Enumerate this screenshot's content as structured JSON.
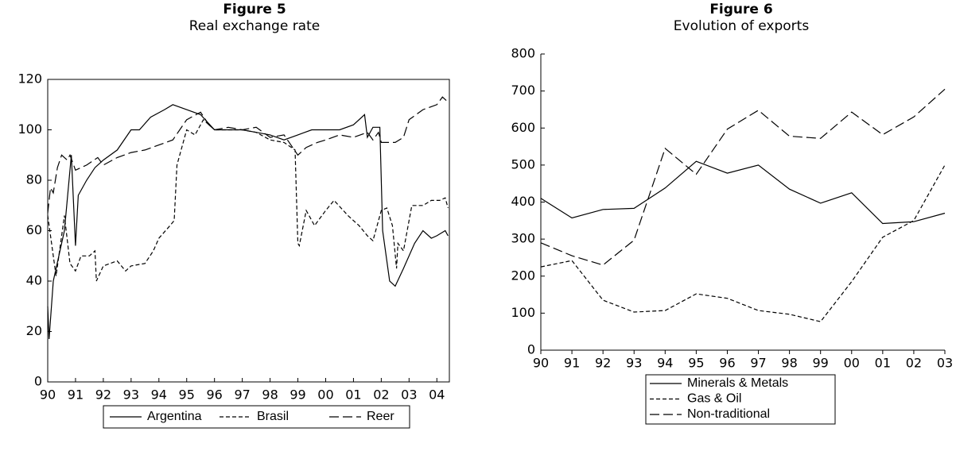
{
  "chart_data": [
    {
      "type": "line",
      "title": "Figure 5",
      "subtitle": "Real exchange rate",
      "xlim": [
        1990,
        2004.45
      ],
      "xticks": [
        {
          "value": 1990,
          "label": "90"
        },
        {
          "value": 1991,
          "label": "91"
        },
        {
          "value": 1992,
          "label": "92"
        },
        {
          "value": 1993,
          "label": "93"
        },
        {
          "value": 1994,
          "label": "94"
        },
        {
          "value": 1995,
          "label": "95"
        },
        {
          "value": 1996,
          "label": "96"
        },
        {
          "value": 1997,
          "label": "97"
        },
        {
          "value": 1998,
          "label": "98"
        },
        {
          "value": 1999,
          "label": "99"
        },
        {
          "value": 2000,
          "label": "00"
        },
        {
          "value": 2001,
          "label": "01"
        },
        {
          "value": 2002,
          "label": "02"
        },
        {
          "value": 2003,
          "label": "03"
        },
        {
          "value": 2004,
          "label": "04"
        }
      ],
      "ylim": [
        0,
        120
      ],
      "yticks": [
        0,
        20,
        40,
        60,
        80,
        100,
        120
      ],
      "frame": true,
      "legend": "bottom",
      "legend_layout": "row",
      "series": [
        {
          "name": "Argentina",
          "color": "#000000",
          "style": "solid",
          "x": [
            1990.0,
            1990.05,
            1990.2,
            1990.4,
            1990.6,
            1990.85,
            1991.0,
            1991.1,
            1991.4,
            1991.7,
            1992.0,
            1992.5,
            1993.0,
            1993.3,
            1993.7,
            1994.2,
            1994.5,
            1995.0,
            1995.5,
            1996.0,
            1997.0,
            1997.5,
            1998.0,
            1998.5,
            1999.0,
            1999.5,
            2000.5,
            2001.0,
            2001.4,
            2001.5,
            2001.7,
            2001.95,
            2002.05,
            2002.3,
            2002.5,
            2002.8,
            2003.2,
            2003.5,
            2003.8,
            2004.0,
            2004.3,
            2004.4
          ],
          "values": [
            30,
            17,
            40,
            50,
            60,
            90,
            54,
            74,
            80,
            85,
            88,
            92,
            100,
            100,
            105,
            108,
            110,
            108,
            106,
            100,
            100,
            99,
            98,
            96,
            98,
            100,
            100,
            102,
            106,
            97,
            101,
            101,
            60,
            40,
            38,
            45,
            55,
            60,
            57,
            58,
            60,
            58
          ]
        },
        {
          "name": "Brasil",
          "color": "#000000",
          "style": "dashed",
          "x": [
            1990.0,
            1990.2,
            1990.3,
            1990.5,
            1990.6,
            1990.8,
            1991.0,
            1991.2,
            1991.5,
            1991.7,
            1991.75,
            1992.0,
            1992.5,
            1992.8,
            1993.0,
            1993.5,
            1993.8,
            1994.0,
            1994.4,
            1994.55,
            1994.65,
            1995.0,
            1995.3,
            1995.6,
            1996.0,
            1996.5,
            1997.0,
            1997.5,
            1998.0,
            1998.5,
            1998.9,
            1999.0,
            1999.05,
            1999.3,
            1999.6,
            2000.0,
            2000.3,
            2000.8,
            2001.2,
            2001.5,
            2001.7,
            2002.0,
            2002.2,
            2002.4,
            2002.55,
            2002.6,
            2002.8,
            2003.1,
            2003.5,
            2003.8,
            2004.1,
            2004.3,
            2004.4
          ],
          "values": [
            66,
            50,
            42,
            58,
            66,
            47,
            44,
            50,
            50,
            52,
            40,
            46,
            48,
            44,
            46,
            47,
            52,
            57,
            62,
            64,
            86,
            100,
            98,
            104,
            100,
            100,
            100,
            99,
            96,
            95,
            92,
            55,
            54,
            68,
            62,
            68,
            72,
            66,
            62,
            58,
            56,
            68,
            69,
            62,
            45,
            55,
            52,
            70,
            70,
            72,
            72,
            73,
            69
          ]
        },
        {
          "name": "Reer",
          "color": "#000000",
          "style": "longdash",
          "x": [
            1990.0,
            1990.1,
            1990.2,
            1990.35,
            1990.5,
            1990.7,
            1990.8,
            1991.0,
            1991.4,
            1991.8,
            1992.0,
            1992.5,
            1993.0,
            1993.5,
            1994.0,
            1994.5,
            1995.0,
            1995.5,
            1995.8,
            1996.0,
            1996.5,
            1997.0,
            1997.5,
            1998.0,
            1998.5,
            1999.0,
            1999.3,
            1999.7,
            2000.0,
            2000.5,
            2001.0,
            2001.5,
            2001.7,
            2001.9,
            2002.0,
            2002.5,
            2002.8,
            2003.0,
            2003.5,
            2004.0,
            2004.2,
            2004.4
          ],
          "values": [
            67,
            77,
            75,
            85,
            90,
            88,
            90,
            84,
            86,
            89,
            86,
            89,
            91,
            92,
            94,
            96,
            104,
            107,
            102,
            100,
            101,
            100,
            101,
            97,
            98,
            90,
            93,
            95,
            96,
            98,
            97,
            99,
            96,
            99,
            95,
            95,
            97,
            104,
            108,
            110,
            113,
            111
          ]
        }
      ]
    },
    {
      "type": "line",
      "title": "Figure 6",
      "subtitle": "Evolution of exports",
      "categories": [
        "90",
        "91",
        "92",
        "93",
        "94",
        "95",
        "96",
        "97",
        "98",
        "99",
        "00",
        "01",
        "02",
        "03"
      ],
      "ylim": [
        0,
        800
      ],
      "yticks": [
        0,
        100,
        200,
        300,
        400,
        500,
        600,
        700,
        800
      ],
      "frame": false,
      "legend": "bottom",
      "legend_layout": "column",
      "series": [
        {
          "name": "Minerals & Metals",
          "color": "#000000",
          "style": "solid",
          "values": [
            410,
            357,
            380,
            383,
            438,
            510,
            478,
            500,
            435,
            397,
            425,
            342,
            347,
            370
          ]
        },
        {
          "name": "Gas & Oil",
          "color": "#000000",
          "style": "dashed",
          "values": [
            225,
            242,
            135,
            103,
            107,
            152,
            140,
            107,
            97,
            77,
            185,
            305,
            350,
            500
          ]
        },
        {
          "name": "Non-traditional",
          "color": "#000000",
          "style": "longdash",
          "values": [
            290,
            255,
            230,
            297,
            545,
            475,
            597,
            648,
            578,
            572,
            643,
            582,
            630,
            705
          ]
        }
      ]
    }
  ]
}
